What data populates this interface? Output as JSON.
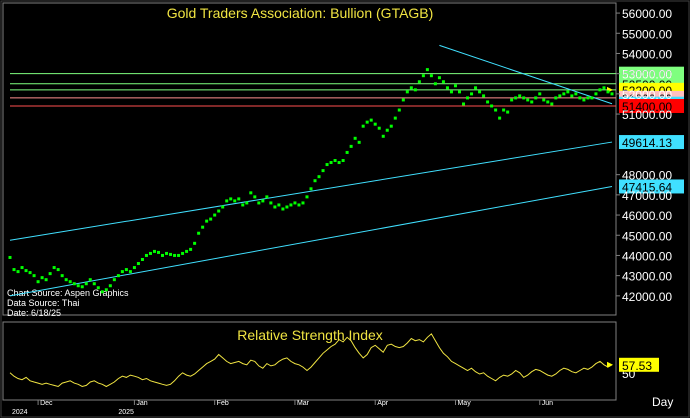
{
  "chart_data": [
    {
      "type": "scatter",
      "title": "Gold Traders Association: Bullion (GTAGB)",
      "ylim": [
        41200,
        56400
      ],
      "yticks": [
        42000,
        43000,
        44000,
        45000,
        46000,
        47000,
        48000,
        51000,
        52000,
        53000,
        54000,
        55000,
        56000
      ],
      "ytick_labels": [
        "42000.00",
        "43000.00",
        "44000.00",
        "45000.00",
        "46000.00",
        "47000.00",
        "48000.00",
        "51000.00",
        "52000.00",
        "53000.00",
        "54000.00",
        "55000.00",
        "56000.00"
      ],
      "level_labels": [
        {
          "label": "53000.00",
          "value": 53000,
          "bg": "#7fff7f",
          "fg": "#000000",
          "line": "#7fff7f"
        },
        {
          "label": "52500.00",
          "value": 52500,
          "bg": "#7fff7f",
          "fg": "#000000",
          "line": "#7fff7f"
        },
        {
          "label": "52200.00",
          "value": 52200,
          "bg": "#ffff00",
          "fg": "#000000",
          "line": "#7fff7f"
        },
        {
          "label": "51800.00",
          "value": 51800,
          "bg": "#ffbfbf",
          "fg": "#000000",
          "line": "#ff9090"
        },
        {
          "label": "51512.50",
          "value": 51512.5,
          "bg": "#40e0ff",
          "fg": "#000000",
          "line": null
        },
        {
          "label": "51400.00",
          "value": 51400,
          "bg": "#ff0000",
          "fg": "#000000",
          "line": "#ff5050"
        },
        {
          "label": "49614.13",
          "value": 49614.13,
          "bg": "#40e0ff",
          "fg": "#000000",
          "line": null
        },
        {
          "label": "47415.64",
          "value": 47415.64,
          "bg": "#40e0ff",
          "fg": "#000000",
          "line": null
        }
      ],
      "trendlines": [
        {
          "color": "#40e0ff",
          "from": [
            0,
            44750
          ],
          "to": [
            150,
            49614.13
          ]
        },
        {
          "color": "#40e0ff",
          "from": [
            0,
            42000
          ],
          "to": [
            150,
            47415.64
          ]
        },
        {
          "color": "#40e0ff",
          "from": [
            107,
            54400
          ],
          "to": [
            150,
            51512.5
          ]
        }
      ],
      "series": [
        {
          "values": [
            43900,
            43300,
            43200,
            43400,
            43250,
            43150,
            43000,
            42700,
            42900,
            42800,
            43100,
            43400,
            43300,
            43000,
            42800,
            42700,
            42600,
            42500,
            42450,
            42600,
            42800,
            42600,
            42400,
            42200,
            42300,
            42500,
            42800,
            43000,
            43200,
            43300,
            43200,
            43400,
            43600,
            43800,
            44000,
            44100,
            44200,
            44150,
            44000,
            44100,
            44050,
            44000,
            44000,
            44100,
            44200,
            44300,
            44600,
            45100,
            45400,
            45700,
            45800,
            46000,
            46200,
            46400,
            46700,
            46800,
            46700,
            46800,
            46500,
            46600,
            47100,
            46900,
            46600,
            46700,
            46900,
            46600,
            46400,
            46500,
            46300,
            46400,
            46500,
            46600,
            46500,
            46600,
            46900,
            47300,
            47700,
            47900,
            48200,
            48500,
            48600,
            48700,
            48600,
            48700,
            49100,
            49400,
            49800,
            49600,
            50400,
            50600,
            50700,
            50500,
            50300,
            49900,
            50200,
            50400,
            50800,
            51200,
            51700,
            52100,
            52300,
            52200,
            52600,
            52900,
            53200,
            52900,
            52500,
            52800,
            52600,
            52300,
            52100,
            52400,
            52100,
            51500,
            51800,
            52000,
            52300,
            52100,
            51900,
            51600,
            51400,
            51200,
            50800,
            51200,
            51100,
            51700,
            51800,
            51900,
            51800,
            51700,
            51600,
            51800,
            52000,
            51700,
            51600,
            51500,
            51800,
            51900,
            52000,
            52100,
            51900,
            52000,
            51800,
            51700,
            51800,
            51800,
            52000,
            52200,
            52300,
            52100,
            52000
          ]
        }
      ]
    },
    {
      "type": "line",
      "title": "Relative Strength Index",
      "ylim": [
        28,
        90
      ],
      "yticks": [
        50
      ],
      "ytick_labels": [
        "50"
      ],
      "last_value_label": "57.53",
      "series": [
        {
          "values": [
            50,
            47,
            45,
            44,
            46,
            43,
            42,
            41,
            40,
            41,
            40,
            39,
            38,
            41,
            42,
            43,
            41,
            40,
            38,
            39,
            42,
            43,
            41,
            40,
            38,
            40,
            42,
            45,
            47,
            46,
            48,
            47,
            46,
            44,
            45,
            43,
            42,
            41,
            40,
            39,
            40,
            43,
            47,
            50,
            48,
            47,
            49,
            52,
            55,
            58,
            60,
            62,
            66,
            63,
            60,
            58,
            59,
            60,
            58,
            57,
            61,
            60,
            56,
            54,
            58,
            56,
            57,
            60,
            62,
            63,
            60,
            58,
            57,
            55,
            52,
            55,
            59,
            63,
            67,
            70,
            73,
            75,
            79,
            77,
            81,
            78,
            72,
            67,
            63,
            66,
            72,
            74,
            71,
            68,
            74,
            75,
            73,
            72,
            73,
            76,
            80,
            78,
            79,
            77,
            81,
            84,
            78,
            72,
            67,
            64,
            60,
            58,
            56,
            54,
            52,
            54,
            51,
            49,
            50,
            47,
            45,
            43,
            46,
            48,
            47,
            49,
            52,
            50,
            46,
            48,
            51,
            53,
            52,
            50,
            48,
            47,
            49,
            52,
            54,
            53,
            51,
            50,
            52,
            54,
            53,
            55,
            58,
            60,
            57,
            55,
            57
          ]
        }
      ]
    }
  ],
  "notes": {
    "chart_source": "Chart Source: Aspen Graphics",
    "data_source": "Data Source: Thai",
    "date": "Date: 6/18/25",
    "x_axis_label": "Day"
  },
  "x_axis": {
    "months": [
      {
        "label": "Dec",
        "index": 7
      },
      {
        "label": "Jan",
        "index": 31
      },
      {
        "label": "Feb",
        "index": 51
      },
      {
        "label": "Mar",
        "index": 71
      },
      {
        "label": "Apr",
        "index": 91
      },
      {
        "label": "May",
        "index": 111
      },
      {
        "label": "Jun",
        "index": 132
      }
    ],
    "years": [
      {
        "label": "2024",
        "index": 0
      },
      {
        "label": "2025",
        "index": 27
      }
    ]
  }
}
